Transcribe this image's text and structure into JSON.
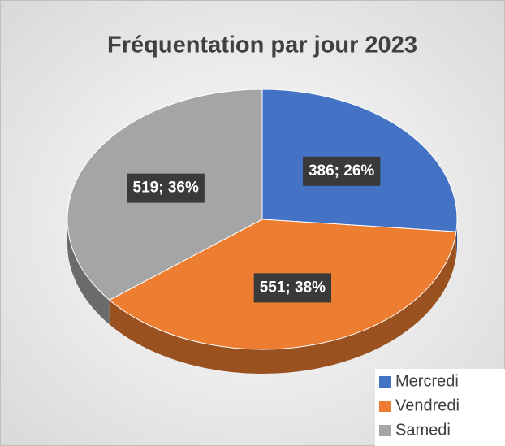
{
  "chart_data": {
    "type": "pie",
    "title": "Fréquentation par jour 2023",
    "categories": [
      "Mercredi",
      "Vendredi",
      "Samedi"
    ],
    "values": [
      386,
      551,
      519
    ],
    "value_labels": [
      "386; 26%",
      "551; 38%",
      "519; 36%"
    ],
    "colors": [
      "#4472c4",
      "#ed7d31",
      "#a5a5a5"
    ],
    "legend": "bottom-right"
  }
}
